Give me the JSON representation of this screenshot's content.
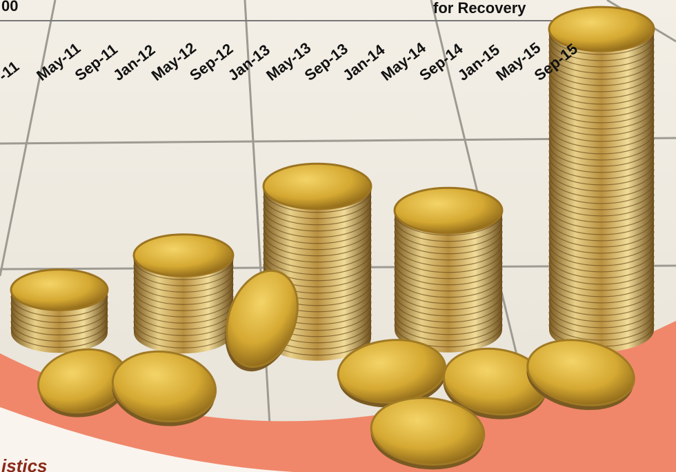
{
  "header": {
    "left_text": "00",
    "right_text": "for Recovery"
  },
  "axis_labels": [
    "-11",
    "May-11",
    "Sep-11",
    "Jan-12",
    "May-12",
    "Sep-12",
    "Jan-13",
    "May-13",
    "Sep-13",
    "Jan-14",
    "May-14",
    "Sep-14",
    "Jan-15",
    "May-15",
    "Sep-15"
  ],
  "footer": {
    "text": "istics"
  }
}
